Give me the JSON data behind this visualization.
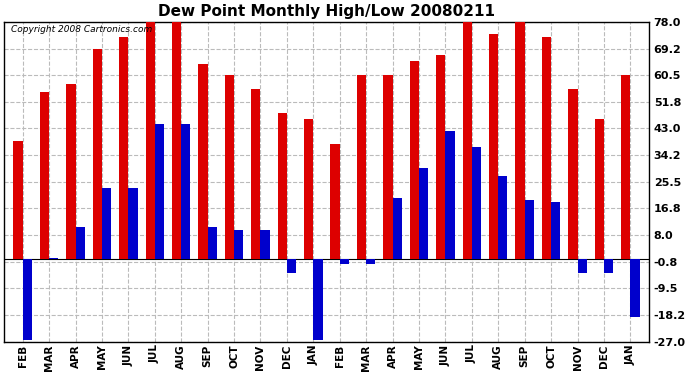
{
  "title": "Dew Point Monthly High/Low 20080211",
  "copyright": "Copyright 2008 Cartronics.com",
  "months": [
    "FEB",
    "MAR",
    "APR",
    "MAY",
    "JUN",
    "JUL",
    "AUG",
    "SEP",
    "OCT",
    "NOV",
    "DEC",
    "JAN",
    "FEB",
    "MAR",
    "APR",
    "MAY",
    "JUN",
    "JUL",
    "AUG",
    "SEP",
    "OCT",
    "NOV",
    "DEC",
    "JAN"
  ],
  "highs": [
    39.0,
    55.0,
    57.5,
    69.2,
    73.0,
    78.0,
    78.0,
    64.0,
    60.5,
    56.0,
    48.0,
    46.0,
    38.0,
    60.5,
    60.5,
    65.0,
    67.0,
    78.0,
    74.0,
    78.0,
    73.0,
    56.0,
    46.0,
    60.5
  ],
  "lows": [
    -26.5,
    0.5,
    10.5,
    23.5,
    23.5,
    44.5,
    44.5,
    10.5,
    9.5,
    9.5,
    -4.5,
    -26.5,
    -1.5,
    -1.5,
    20.0,
    30.0,
    42.0,
    37.0,
    27.5,
    19.5,
    19.0,
    -4.5,
    -4.5,
    -19.0
  ],
  "high_color": "#dd0000",
  "low_color": "#0000cc",
  "bar_width": 0.35,
  "ylim": [
    -27.0,
    78.0
  ],
  "yticks": [
    -27.0,
    -18.2,
    -9.5,
    -0.8,
    8.0,
    16.8,
    25.5,
    34.2,
    43.0,
    51.8,
    60.5,
    69.2,
    78.0
  ],
  "background_color": "#ffffff",
  "grid_color": "#bbbbbb",
  "title_fontsize": 11,
  "figwidth": 6.9,
  "figheight": 3.75,
  "dpi": 100
}
